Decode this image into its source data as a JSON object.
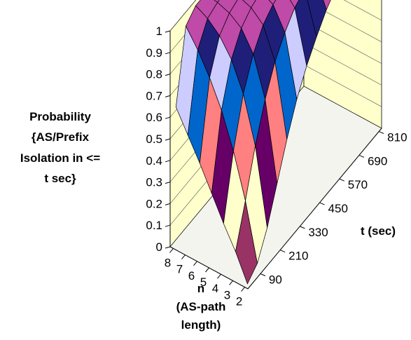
{
  "chart_data": {
    "type": "surface",
    "title": "",
    "zlabel_lines": [
      "Probability",
      "{AS/Prefix",
      "Isolation in <=",
      "t sec}"
    ],
    "xlabel_lines": [
      "n",
      "(AS-path",
      "length)"
    ],
    "ylabel": "t (sec)",
    "z_ticks": [
      "0",
      "0.1",
      "0.2",
      "0.3",
      "0.4",
      "0.5",
      "0.6",
      "0.7",
      "0.8",
      "0.9",
      "1"
    ],
    "zlim": [
      0,
      1
    ],
    "x_tick_labels": [
      "8",
      "7",
      "6",
      "5",
      "4",
      "3",
      "2"
    ],
    "y_tick_labels": [
      "90",
      "210",
      "330",
      "450",
      "570",
      "690",
      "810"
    ],
    "n_values": [
      8,
      7,
      6,
      5,
      4,
      3,
      2
    ],
    "t_values": [
      30,
      90,
      150,
      210,
      270,
      330,
      390,
      450,
      510,
      570,
      630,
      690,
      750,
      810
    ],
    "z": [
      [
        0.64,
        0.96,
        1.0,
        1.0,
        1.0,
        1.0,
        1.0,
        1.0,
        1.0,
        1.0,
        1.0,
        1.0,
        1.0,
        1.0
      ],
      [
        0.54,
        0.88,
        0.97,
        0.99,
        1.0,
        1.0,
        1.0,
        1.0,
        1.0,
        1.0,
        1.0,
        1.0,
        1.0,
        1.0
      ],
      [
        0.44,
        0.78,
        0.92,
        0.97,
        0.99,
        1.0,
        1.0,
        1.0,
        1.0,
        1.0,
        1.0,
        1.0,
        1.0,
        1.0
      ],
      [
        0.33,
        0.66,
        0.84,
        0.93,
        0.97,
        0.99,
        1.0,
        1.0,
        1.0,
        1.0,
        1.0,
        1.0,
        1.0,
        1.0
      ],
      [
        0.22,
        0.5,
        0.71,
        0.84,
        0.92,
        0.96,
        0.98,
        0.99,
        1.0,
        1.0,
        1.0,
        1.0,
        1.0,
        1.0
      ],
      [
        0.12,
        0.3,
        0.5,
        0.66,
        0.78,
        0.86,
        0.92,
        0.95,
        0.97,
        0.98,
        0.99,
        1.0,
        1.0,
        1.0
      ],
      [
        0.0,
        0.04,
        0.15,
        0.3,
        0.45,
        0.58,
        0.68,
        0.76,
        0.83,
        0.88,
        0.92,
        0.95,
        0.97,
        0.98
      ]
    ],
    "band_colors": [
      "#9b9bd6",
      "#993366",
      "#ffffcc",
      "#ccecff",
      "#660066",
      "#ff8080",
      "#0066cc",
      "#ccccff",
      "#1f1f7a",
      "#bf4aa8"
    ],
    "wall_color": "#ffffcc",
    "grid": true
  }
}
